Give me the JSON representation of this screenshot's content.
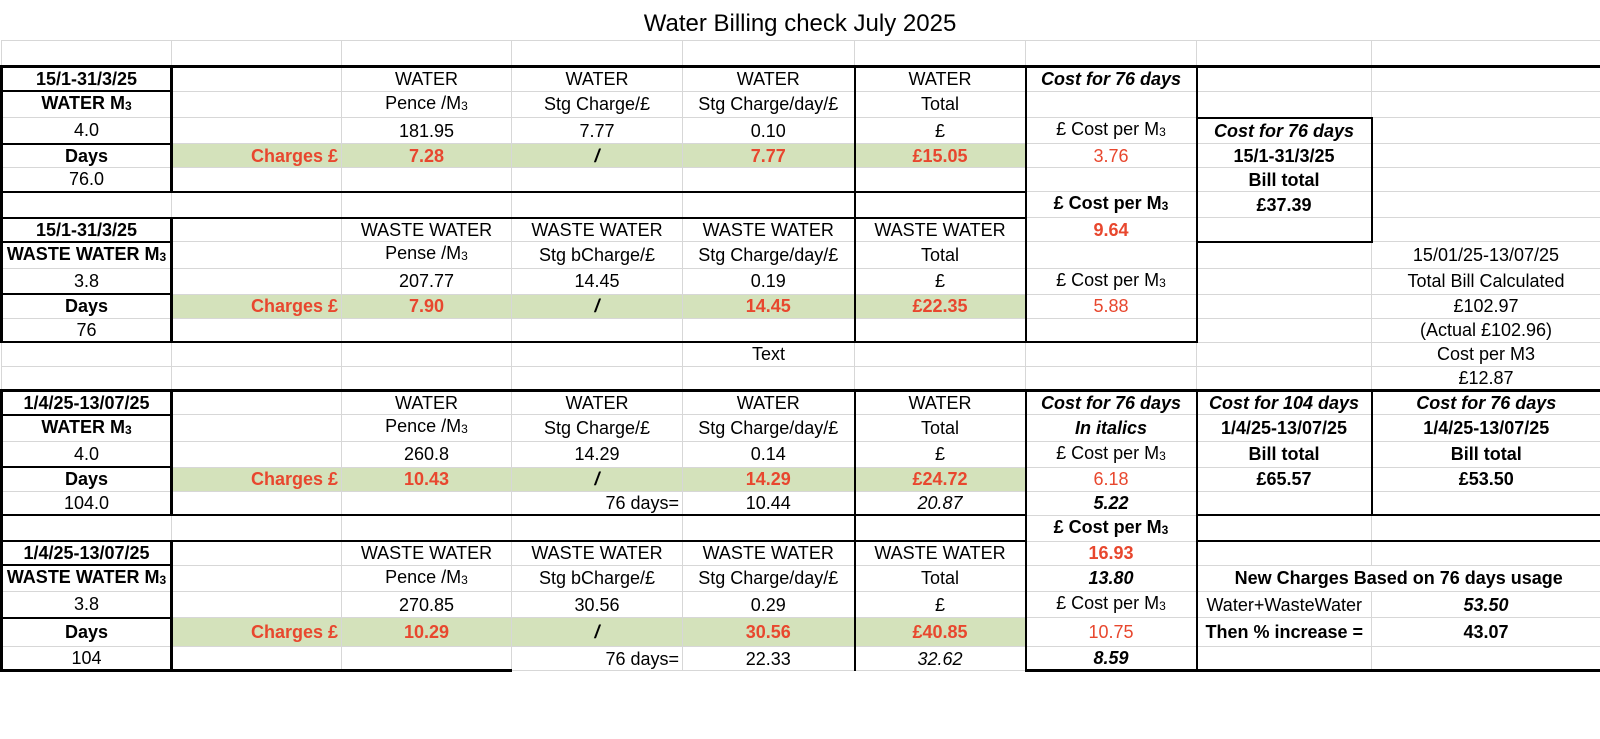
{
  "title": "Water Billing check July 2025",
  "sec1": {
    "period": "15/1-31/3/25",
    "qty_label": "WATER M",
    "qty_sub": "3",
    "qty": "4.0",
    "days_label": "Days",
    "days": "76.0",
    "charges_label": "Charges £",
    "h1": [
      "WATER",
      "WATER",
      "WATER",
      "WATER"
    ],
    "h2a": "Pence /M",
    "h2b": "Stg Charge/£",
    "h2c": "Stg Charge/day/£",
    "h2d": "Total",
    "rate": "181.95",
    "stg": "7.77",
    "per_day": "0.10",
    "pound": "£",
    "c_rate": "7.28",
    "c_stg": "/",
    "c_day": "7.77",
    "c_total": "£15.05",
    "cost76": "Cost for 76 days",
    "cpm_label": "£ Cost per M",
    "cpm": "3.76",
    "bill_hdr": "Cost for 76 days",
    "bill_period": "15/1-31/3/25",
    "bill_total_label": "Bill total",
    "bill_total": "£37.39",
    "cpm_label2": "£ Cost per M",
    "cpm_combined": "9.64"
  },
  "sec2": {
    "period": "15/1-31/3/25",
    "qty_label": "WASTE WATER M",
    "qty": "3.8",
    "days_label": "Days",
    "days": "76",
    "charges_label": "Charges £",
    "h1": [
      "WASTE WATER",
      "WASTE WATER",
      "WASTE WATER",
      "WASTE WATER"
    ],
    "h2a": "Pense /M",
    "h2b": "Stg bCharge/£",
    "h2c": "Stg Charge/day/£",
    "h2d": "Total",
    "rate": "207.77",
    "stg": "14.45",
    "per_day": "0.19",
    "pound": "£",
    "c_rate": "7.90",
    "c_stg": "/",
    "c_day": "14.45",
    "c_total": "£22.35",
    "cpm_label": "£ Cost per M",
    "cpm": "5.88",
    "side1": "15/01/25-13/07/25",
    "side2": "Total Bill Calculated",
    "side3": "£102.97",
    "side4": "(Actual £102.96)",
    "side5": "Cost per M3",
    "side6": "£12.87",
    "text_label": "Text"
  },
  "sec3": {
    "period": "1/4/25-13/07/25",
    "qty_label": "WATER M",
    "qty": "4.0",
    "days_label": "Days",
    "days": "104.0",
    "charges_label": "Charges £",
    "h1": [
      "WATER",
      "WATER",
      "WATER",
      "WATER"
    ],
    "h2a": "Pence /M",
    "h2b": "Stg Charge/£",
    "h2c": "Stg Charge/day/£",
    "h2d": "Total",
    "rate": "260.8",
    "stg": "14.29",
    "per_day": "0.14",
    "pound": "£",
    "c_rate": "10.43",
    "c_stg": "/",
    "c_day": "14.29",
    "c_total": "£24.72",
    "d76_label": "76 days=",
    "d76_val": "10.44",
    "d76_total": "20.87",
    "cost76": "Cost for 76 days",
    "italics": "In italics",
    "cpm_label": "£ Cost per M",
    "cpm": "6.18",
    "cpm76": "5.22",
    "bill104_hdr": "Cost for 104 days",
    "bill104_period": "1/4/25-13/07/25",
    "bill104_label": "Bill total",
    "bill104": "£65.57",
    "bill76_hdr": "Cost for 76 days",
    "bill76_period": "1/4/25-13/07/25",
    "bill76_label": "Bill total",
    "bill76": "£53.50",
    "cpm_label2": "£ Cost per M",
    "cpm_combined": "16.93"
  },
  "sec4": {
    "period": "1/4/25-13/07/25",
    "qty_label": "WASTE WATER M",
    "qty": "3.8",
    "days_label": "Days",
    "days": "104",
    "charges_label": "Charges £",
    "h1": [
      "WASTE WATER",
      "WASTE WATER",
      "WASTE WATER",
      "WASTE WATER"
    ],
    "h2a": "Pence /M",
    "h2b": "Stg bCharge/£",
    "h2c": "Stg Charge/day/£",
    "h2d": "Total",
    "rate": "270.85",
    "stg": "30.56",
    "per_day": "0.29",
    "pound": "£",
    "c_rate": "10.29",
    "c_stg": "/",
    "c_day": "30.56",
    "c_total": "£40.85",
    "d76_label": "76 days=",
    "d76_val": "22.33",
    "d76_total": "32.62",
    "cpm_combined76": "13.80",
    "cpm_label": "£ Cost per M",
    "cpm": "10.75",
    "cpm76": "8.59",
    "new_charges": "New Charges Based on 76 days usage",
    "ww_label": "Water+WasteWater",
    "ww_val": "53.50",
    "inc_label": "Then % increase =",
    "inc_val": "43.07"
  },
  "m3_sub": "3"
}
